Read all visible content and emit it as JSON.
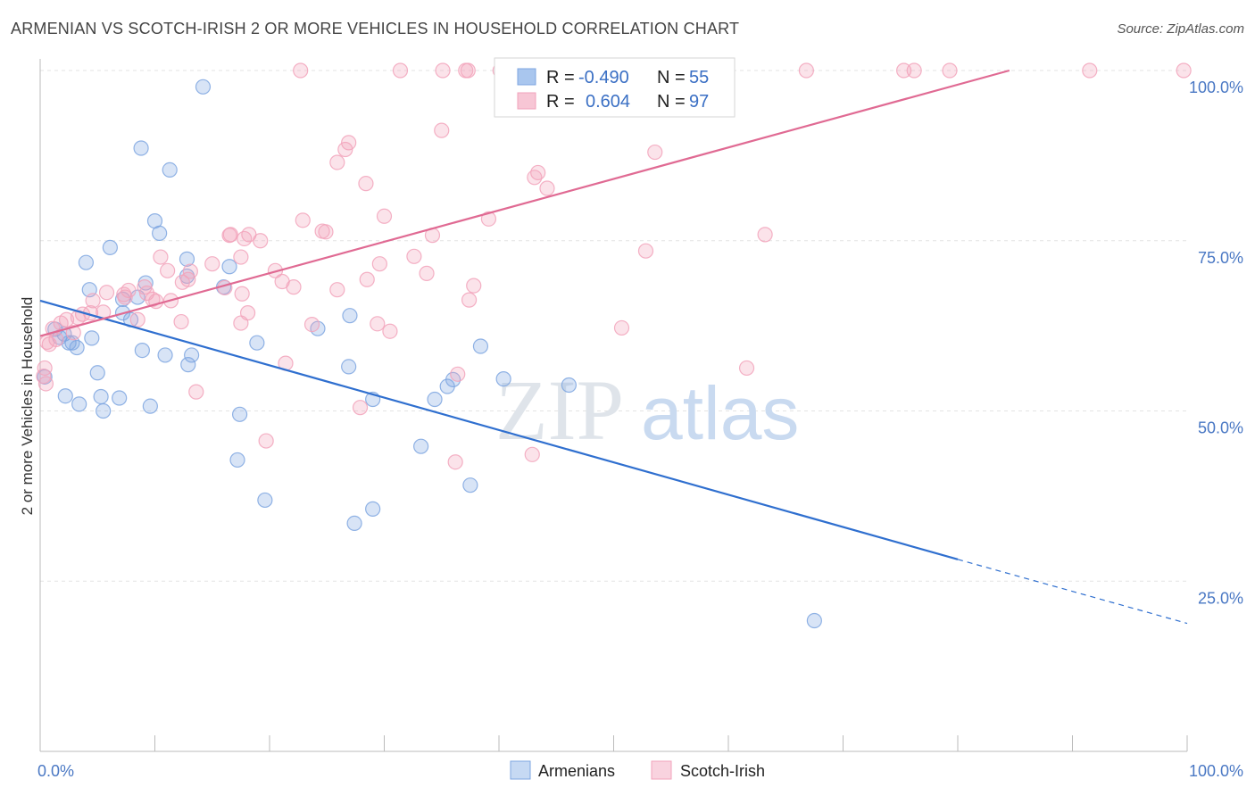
{
  "title": "ARMENIAN VS SCOTCH-IRISH 2 OR MORE VEHICLES IN HOUSEHOLD CORRELATION CHART",
  "source": "Source: ZipAtlas.com",
  "watermark": {
    "zip": "ZIP",
    "atlas": "atlas"
  },
  "chart_data": {
    "type": "scatter",
    "ylabel": "2 or more Vehicles in Household",
    "xlim": [
      0,
      100
    ],
    "ylim": [
      0,
      100
    ],
    "x_ticks": [
      "0.0%",
      "100.0%"
    ],
    "y_ticks": [
      {
        "value": 25,
        "label": "25.0%"
      },
      {
        "value": 50,
        "label": "50.0%"
      },
      {
        "value": 75,
        "label": "75.0%"
      },
      {
        "value": 100,
        "label": "100.0%"
      }
    ],
    "grid": true,
    "legend_stats": [
      {
        "r_label": "R =",
        "r_value": "-0.490",
        "n_label": "N =",
        "n_value": "55",
        "color": "#a9c6ee"
      },
      {
        "r_label": "R =",
        "r_value": "0.604",
        "n_label": "N =",
        "n_value": "97",
        "color": "#f4b6c8"
      }
    ],
    "series": [
      {
        "name": "Armenians",
        "color": "#7ea6e0",
        "line_color": "#2f6fcf",
        "trend": {
          "x0": 0,
          "y0": 66.2,
          "x1": 80,
          "y1": 28.2,
          "x_dash_end": 100,
          "y_dash_end": 18.8
        },
        "points": [
          [
            14.2,
            97.6
          ],
          [
            8.8,
            88.6
          ],
          [
            11.3,
            85.4
          ],
          [
            10.0,
            77.9
          ],
          [
            10.4,
            76.1
          ],
          [
            6.1,
            74.0
          ],
          [
            4.0,
            71.8
          ],
          [
            12.8,
            72.3
          ],
          [
            16.5,
            71.2
          ],
          [
            12.8,
            69.8
          ],
          [
            9.2,
            68.8
          ],
          [
            16.0,
            68.2
          ],
          [
            4.3,
            67.8
          ],
          [
            7.2,
            66.4
          ],
          [
            8.5,
            66.7
          ],
          [
            7.2,
            64.4
          ],
          [
            7.9,
            63.4
          ],
          [
            27.0,
            64.0
          ],
          [
            1.3,
            62.0
          ],
          [
            2.1,
            61.3
          ],
          [
            2.5,
            60.0
          ],
          [
            2.8,
            60.0
          ],
          [
            1.7,
            60.8
          ],
          [
            4.5,
            60.7
          ],
          [
            24.2,
            62.1
          ],
          [
            18.9,
            60.0
          ],
          [
            3.2,
            59.3
          ],
          [
            8.9,
            58.9
          ],
          [
            10.9,
            58.2
          ],
          [
            13.2,
            58.2
          ],
          [
            38.4,
            59.5
          ],
          [
            12.9,
            56.8
          ],
          [
            26.9,
            56.5
          ],
          [
            5.0,
            55.6
          ],
          [
            0.4,
            55.0
          ],
          [
            40.4,
            54.7
          ],
          [
            46.1,
            53.8
          ],
          [
            35.5,
            53.6
          ],
          [
            2.2,
            52.2
          ],
          [
            5.3,
            52.1
          ],
          [
            6.9,
            51.9
          ],
          [
            29.0,
            51.7
          ],
          [
            34.4,
            51.7
          ],
          [
            3.4,
            51.0
          ],
          [
            9.6,
            50.7
          ],
          [
            5.5,
            50.0
          ],
          [
            17.4,
            49.5
          ],
          [
            33.2,
            44.8
          ],
          [
            17.2,
            42.8
          ],
          [
            37.5,
            39.1
          ],
          [
            19.6,
            36.9
          ],
          [
            29.0,
            35.6
          ],
          [
            27.4,
            33.5
          ],
          [
            67.5,
            19.2
          ],
          [
            36.0,
            54.6
          ]
        ]
      },
      {
        "name": "Scotch-Irish",
        "color": "#f2a3bb",
        "line_color": "#e06a93",
        "trend": {
          "x0": 0,
          "y0": 61.0,
          "x1": 84.5,
          "y1": 100.0
        },
        "points": [
          [
            22.7,
            100
          ],
          [
            31.4,
            100
          ],
          [
            35.1,
            100
          ],
          [
            37.3,
            100
          ],
          [
            37.1,
            100
          ],
          [
            40.1,
            100
          ],
          [
            44.7,
            100
          ],
          [
            52.0,
            100
          ],
          [
            56.0,
            100
          ],
          [
            59.5,
            100
          ],
          [
            66.8,
            100
          ],
          [
            75.3,
            100
          ],
          [
            76.2,
            100
          ],
          [
            79.3,
            100
          ],
          [
            91.5,
            100
          ],
          [
            99.7,
            100
          ],
          [
            35.0,
            91.2
          ],
          [
            26.9,
            89.4
          ],
          [
            26.6,
            88.4
          ],
          [
            53.6,
            88.0
          ],
          [
            25.9,
            86.5
          ],
          [
            43.4,
            85.0
          ],
          [
            43.1,
            84.3
          ],
          [
            28.4,
            83.4
          ],
          [
            44.2,
            82.7
          ],
          [
            30.0,
            78.6
          ],
          [
            39.1,
            78.2
          ],
          [
            22.9,
            78.0
          ],
          [
            24.6,
            76.4
          ],
          [
            24.9,
            76.3
          ],
          [
            16.6,
            75.9
          ],
          [
            16.5,
            75.8
          ],
          [
            18.2,
            75.9
          ],
          [
            17.8,
            75.3
          ],
          [
            34.2,
            75.8
          ],
          [
            63.2,
            75.9
          ],
          [
            19.2,
            75.0
          ],
          [
            52.8,
            73.5
          ],
          [
            32.6,
            72.7
          ],
          [
            17.5,
            72.6
          ],
          [
            29.6,
            71.6
          ],
          [
            15.0,
            71.6
          ],
          [
            10.5,
            72.6
          ],
          [
            11.1,
            70.6
          ],
          [
            20.5,
            70.6
          ],
          [
            33.7,
            70.2
          ],
          [
            12.9,
            69.3
          ],
          [
            21.1,
            69.0
          ],
          [
            28.5,
            69.3
          ],
          [
            37.8,
            68.4
          ],
          [
            16.1,
            68.1
          ],
          [
            22.1,
            68.2
          ],
          [
            25.9,
            67.8
          ],
          [
            9.1,
            68.2
          ],
          [
            7.7,
            67.7
          ],
          [
            5.8,
            67.4
          ],
          [
            17.6,
            67.2
          ],
          [
            9.3,
            67.3
          ],
          [
            7.3,
            67.1
          ],
          [
            4.6,
            66.2
          ],
          [
            10.1,
            66.1
          ],
          [
            7.4,
            66.7
          ],
          [
            9.8,
            66.4
          ],
          [
            11.4,
            66.2
          ],
          [
            37.4,
            66.3
          ],
          [
            5.5,
            64.5
          ],
          [
            18.1,
            64.4
          ],
          [
            3.7,
            64.2
          ],
          [
            3.3,
            63.7
          ],
          [
            2.3,
            63.4
          ],
          [
            1.8,
            62.9
          ],
          [
            8.5,
            63.4
          ],
          [
            17.5,
            62.9
          ],
          [
            12.3,
            63.1
          ],
          [
            23.7,
            62.7
          ],
          [
            29.4,
            62.8
          ],
          [
            30.5,
            61.7
          ],
          [
            50.7,
            62.2
          ],
          [
            1.1,
            62.1
          ],
          [
            2.9,
            61.5
          ],
          [
            1.4,
            60.5
          ],
          [
            0.8,
            59.8
          ],
          [
            0.6,
            60.1
          ],
          [
            21.4,
            57.0
          ],
          [
            61.6,
            56.3
          ],
          [
            36.4,
            55.4
          ],
          [
            0.3,
            55.1
          ],
          [
            13.6,
            52.8
          ],
          [
            27.9,
            50.5
          ],
          [
            19.7,
            45.6
          ],
          [
            42.9,
            43.6
          ],
          [
            36.2,
            42.5
          ],
          [
            4.4,
            64.4
          ],
          [
            0.5,
            54.0
          ],
          [
            0.4,
            56.3
          ],
          [
            12.4,
            68.9
          ],
          [
            13.1,
            70.5
          ]
        ]
      }
    ]
  },
  "legend": {
    "items": [
      "Armenians",
      "Scotch-Irish"
    ]
  }
}
